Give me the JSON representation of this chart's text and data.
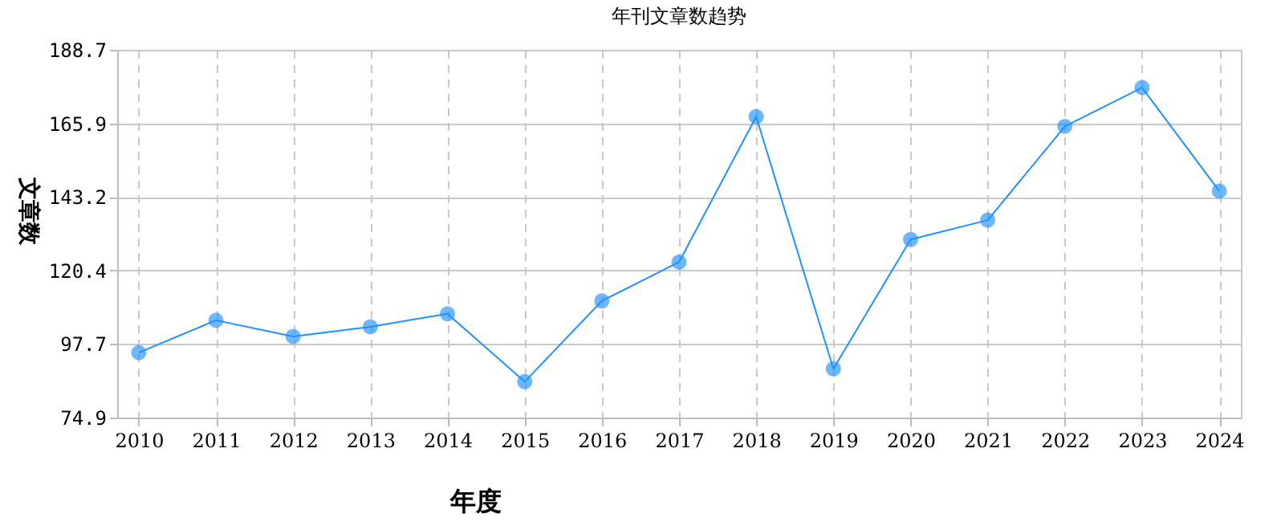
{
  "chart_data": {
    "type": "line",
    "title": "年刊文章数趋势",
    "xlabel": "年度",
    "ylabel": "文章数",
    "categories": [
      "2010",
      "2011",
      "2012",
      "2013",
      "2014",
      "2015",
      "2016",
      "2017",
      "2018",
      "2019",
      "2020",
      "2021",
      "2022",
      "2023",
      "2024"
    ],
    "series": [
      {
        "color": "#1e90ff",
        "values": [
          95,
          105,
          100,
          103,
          107,
          86,
          111,
          123,
          168,
          90,
          130,
          136,
          165,
          177,
          145
        ]
      }
    ],
    "ylim": [
      74.9,
      188.7
    ],
    "yticks": [
      74.9,
      97.7,
      120.4,
      143.2,
      165.9,
      188.7
    ],
    "grid": true,
    "marker": "circle",
    "line_style": "solid"
  }
}
